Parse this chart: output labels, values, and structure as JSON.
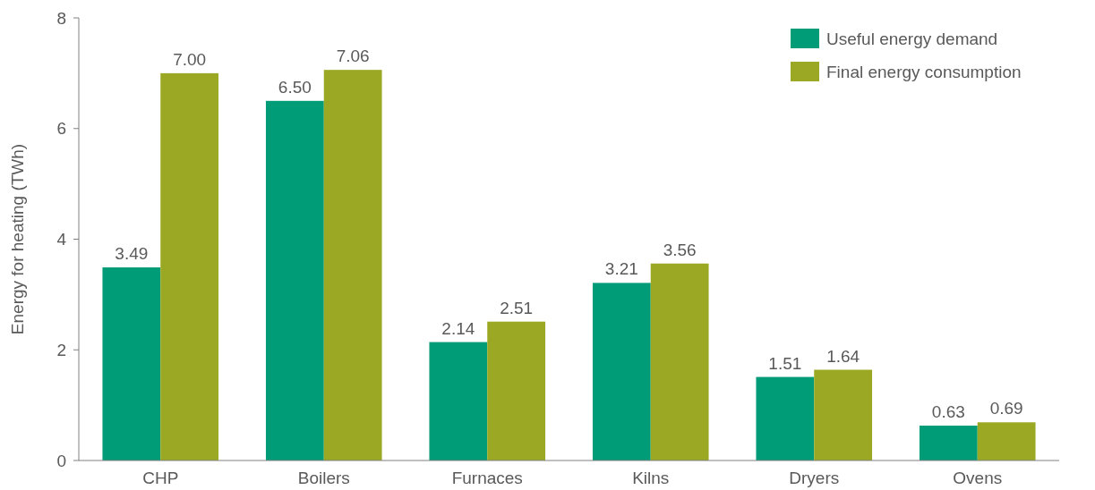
{
  "chart_data": {
    "type": "bar",
    "ylabel": "Energy for heating (TWh)",
    "categories": [
      "CHP",
      "Boilers",
      "Furnaces",
      "Kilns",
      "Dryers",
      "Ovens"
    ],
    "series": [
      {
        "name": "Useful energy demand",
        "color": "#009b77",
        "values": [
          3.49,
          6.5,
          2.14,
          3.21,
          1.51,
          0.63
        ],
        "value_labels": [
          "3.49",
          "6.50",
          "2.14",
          "3.21",
          "1.51",
          "0.63"
        ]
      },
      {
        "name": "Final energy consumption",
        "color": "#9aa823",
        "values": [
          7.0,
          7.06,
          2.51,
          3.56,
          1.64,
          0.69
        ],
        "value_labels": [
          "7.00",
          "7.06",
          "2.51",
          "3.56",
          "1.64",
          "0.69"
        ]
      }
    ],
    "ylim": [
      0,
      8
    ],
    "yticks": [
      0,
      2,
      4,
      6,
      8
    ],
    "legend": "top right",
    "grid": false
  }
}
